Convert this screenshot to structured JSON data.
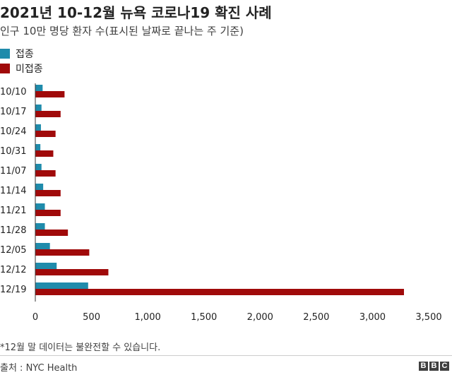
{
  "header": {
    "title": "2021년 10-12월 뉴욕 코로나19 확진 사례",
    "subtitle": "인구 10만 명당 환자 수(표시된 날짜로 끝나는 주 기준)"
  },
  "legend": [
    {
      "label": "접종",
      "color": "#1f8bab"
    },
    {
      "label": "미접종",
      "color": "#a00a0a"
    }
  ],
  "chart_data": {
    "type": "bar",
    "orientation": "horizontal",
    "categories": [
      "10/10",
      "10/17",
      "10/24",
      "10/31",
      "11/07",
      "11/14",
      "11/21",
      "11/28",
      "12/05",
      "12/12",
      "12/19"
    ],
    "series": [
      {
        "name": "접종",
        "color": "#1f8bab",
        "values": [
          65,
          55,
          50,
          45,
          55,
          70,
          85,
          85,
          130,
          190,
          470
        ]
      },
      {
        "name": "미접종",
        "color": "#a00a0a",
        "values": [
          260,
          225,
          180,
          160,
          180,
          225,
          225,
          290,
          480,
          650,
          3280
        ]
      }
    ],
    "xlim": [
      0,
      3500
    ],
    "xticks": [
      0,
      500,
      1000,
      1500,
      2000,
      2500,
      3000,
      3500
    ],
    "xtick_labels": [
      "0",
      "500",
      "1,000",
      "1,500",
      "2,000",
      "2,500",
      "3,000",
      "3,500"
    ],
    "grid": false
  },
  "footnote": "*12월 말 데이터는 불완전할 수 있습니다.",
  "source": "출처 : NYC Health",
  "logo": [
    "B",
    "B",
    "C"
  ]
}
